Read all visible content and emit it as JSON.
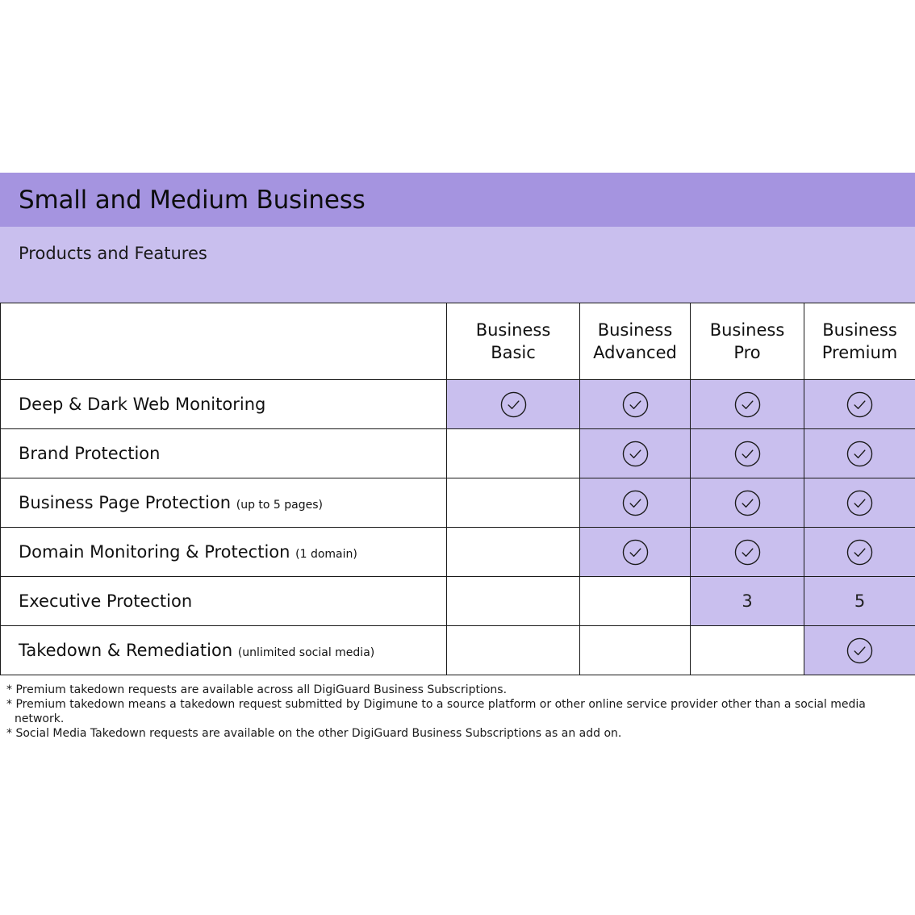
{
  "header": {
    "title": "Small and Medium Business",
    "subtitle": "Products and Features"
  },
  "table": {
    "columns": [
      {
        "line1": "Business",
        "line2": "Basic"
      },
      {
        "line1": "Business",
        "line2": "Advanced"
      },
      {
        "line1": "Business",
        "line2": "Pro"
      },
      {
        "line1": "Business",
        "line2": "Premium"
      }
    ],
    "rows": [
      {
        "feature": "Deep & Dark Web Monitoring",
        "note": "",
        "cells": [
          "check",
          "check",
          "check",
          "check"
        ]
      },
      {
        "feature": "Brand Protection",
        "note": "",
        "cells": [
          "",
          "check",
          "check",
          "check"
        ]
      },
      {
        "feature": "Business Page Protection",
        "note": "(up to 5 pages)",
        "cells": [
          "",
          "check",
          "check",
          "check"
        ]
      },
      {
        "feature": "Domain Monitoring & Protection",
        "note": "(1 domain)",
        "cells": [
          "",
          "check",
          "check",
          "check"
        ]
      },
      {
        "feature": "Executive Protection",
        "note": "",
        "cells": [
          "",
          "",
          "3",
          "5"
        ]
      },
      {
        "feature": "Takedown & Remediation",
        "note": "(unlimited social media)",
        "cells": [
          "",
          "",
          "",
          "check"
        ]
      }
    ]
  },
  "footnotes": [
    "* Premium takedown requests are available across all DigiGuard Business Subscriptions.",
    "* Premium takedown means a takedown request submitted by Digimune to a source platform or other online service provider other than a social media network.",
    "* Social Media Takedown requests are available on the other DigiGuard Business Subscriptions as an add on."
  ],
  "colors": {
    "title_band": "#a594e0",
    "highlight": "#c9bfee"
  },
  "icons": {
    "check": "check-circle-icon"
  }
}
